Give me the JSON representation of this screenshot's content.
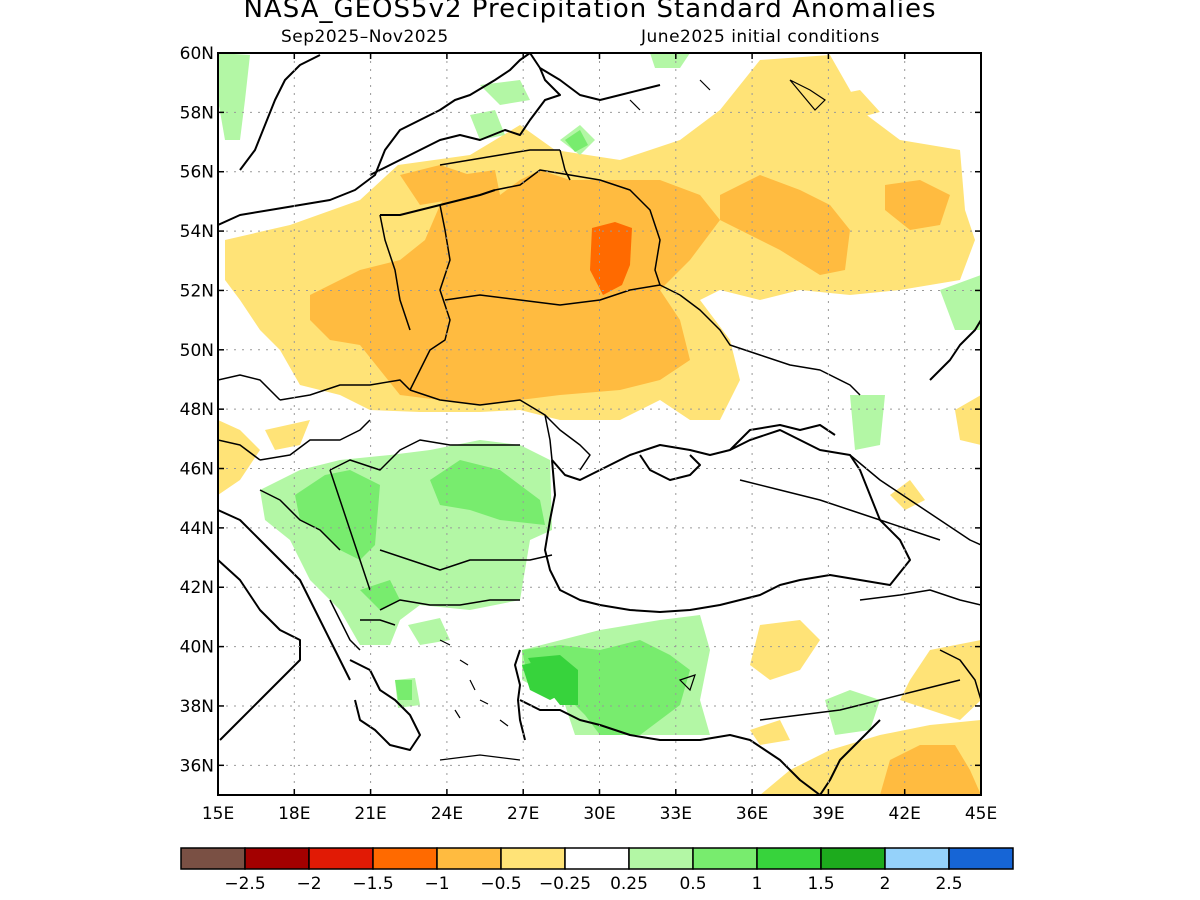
{
  "header": {
    "title": "NASA_GEOS5v2 Precipitation Standard Anomalies",
    "subtitle_left": "Sep2025–Nov2025",
    "subtitle_right": "June2025 initial conditions"
  },
  "axes": {
    "lon": {
      "min": 15,
      "max": 45,
      "ticks": [
        "15E",
        "18E",
        "21E",
        "24E",
        "27E",
        "30E",
        "33E",
        "36E",
        "39E",
        "42E",
        "45E"
      ]
    },
    "lat": {
      "min": 35,
      "max": 60,
      "ticks": [
        "36N",
        "38N",
        "40N",
        "42N",
        "44N",
        "46N",
        "48N",
        "50N",
        "52N",
        "54N",
        "56N",
        "58N",
        "60N"
      ]
    },
    "grid": "dotted"
  },
  "colorbar": {
    "colors": [
      "#7a5044",
      "#a30000",
      "#e11a05",
      "#ff6a00",
      "#ffbb40",
      "#ffe377",
      "#ffffff",
      "#b3f7a5",
      "#78ec6e",
      "#37d33c",
      "#1dab1d",
      "#95d2fa",
      "#1665d6"
    ],
    "labels": [
      "−2.5",
      "−2",
      "−1.5",
      "−1",
      "−0.5",
      "−0.25",
      "0.25",
      "0.5",
      "1",
      "1.5",
      "2",
      "2.5"
    ]
  }
}
